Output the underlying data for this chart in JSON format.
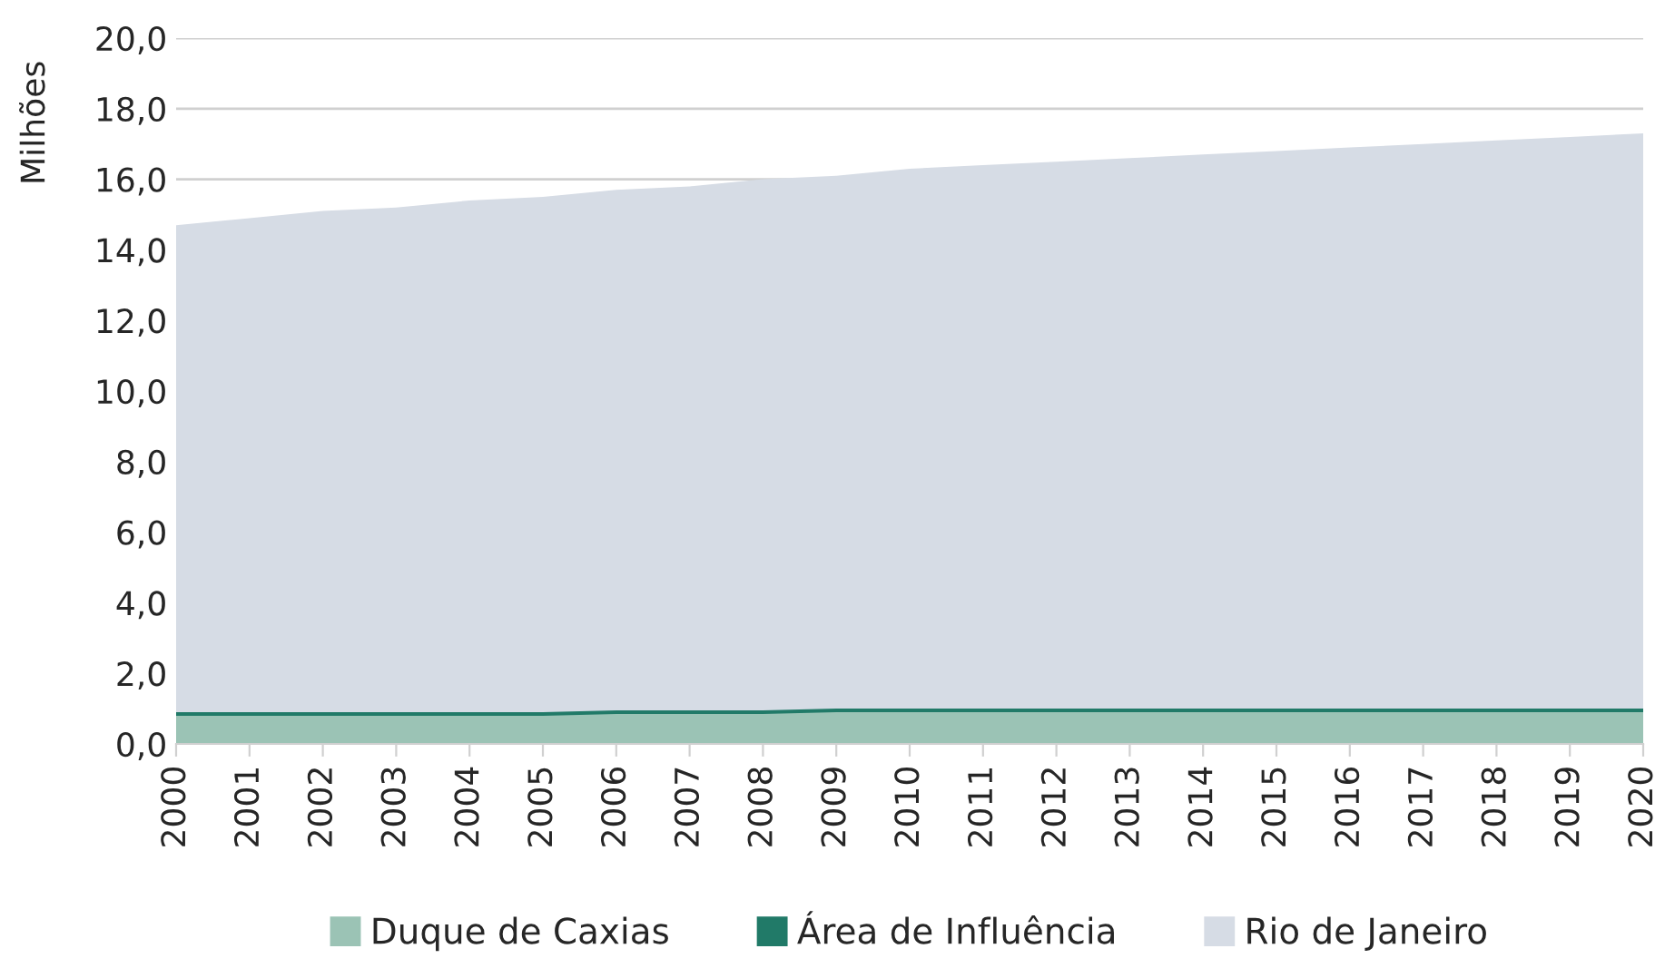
{
  "chart_data": {
    "type": "area",
    "ylabel": "Milhões",
    "categories": [
      "2000",
      "2001",
      "2002",
      "2003",
      "2004",
      "2005",
      "2006",
      "2007",
      "2008",
      "2009",
      "2010",
      "2011",
      "2012",
      "2013",
      "2014",
      "2015",
      "2016",
      "2017",
      "2018",
      "2019",
      "2020"
    ],
    "series": [
      {
        "name": "Duque de Caxias",
        "color": "#9bc3b5",
        "values": [
          0.8,
          0.8,
          0.8,
          0.8,
          0.8,
          0.8,
          0.85,
          0.85,
          0.85,
          0.9,
          0.9,
          0.9,
          0.9,
          0.9,
          0.9,
          0.9,
          0.9,
          0.9,
          0.9,
          0.9,
          0.9
        ]
      },
      {
        "name": "Área de Influência",
        "color": "#217a68",
        "values": [
          0.9,
          0.9,
          0.9,
          0.9,
          0.9,
          0.9,
          0.95,
          0.95,
          0.95,
          1.0,
          1.0,
          1.0,
          1.0,
          1.0,
          1.0,
          1.0,
          1.0,
          1.0,
          1.0,
          1.0,
          1.0
        ]
      },
      {
        "name": "Rio de Janeiro",
        "color": "#d6dce5",
        "values": [
          14.7,
          14.9,
          15.1,
          15.2,
          15.4,
          15.5,
          15.7,
          15.8,
          16.0,
          16.1,
          16.3,
          16.4,
          16.5,
          16.6,
          16.7,
          16.8,
          16.9,
          17.0,
          17.1,
          17.2,
          17.3
        ]
      }
    ],
    "ylim": [
      0,
      20
    ],
    "yticks": [
      {
        "value": 0,
        "label": "0,0"
      },
      {
        "value": 2,
        "label": "2,0"
      },
      {
        "value": 4,
        "label": "4,0"
      },
      {
        "value": 6,
        "label": "6,0"
      },
      {
        "value": 8,
        "label": "8,0"
      },
      {
        "value": 10,
        "label": "10,0"
      },
      {
        "value": 12,
        "label": "12,0"
      },
      {
        "value": 14,
        "label": "14,0"
      },
      {
        "value": 16,
        "label": "16,0"
      },
      {
        "value": 18,
        "label": "18,0"
      },
      {
        "value": 20,
        "label": "20,0"
      }
    ],
    "grid": "y",
    "legend": "bottom"
  }
}
